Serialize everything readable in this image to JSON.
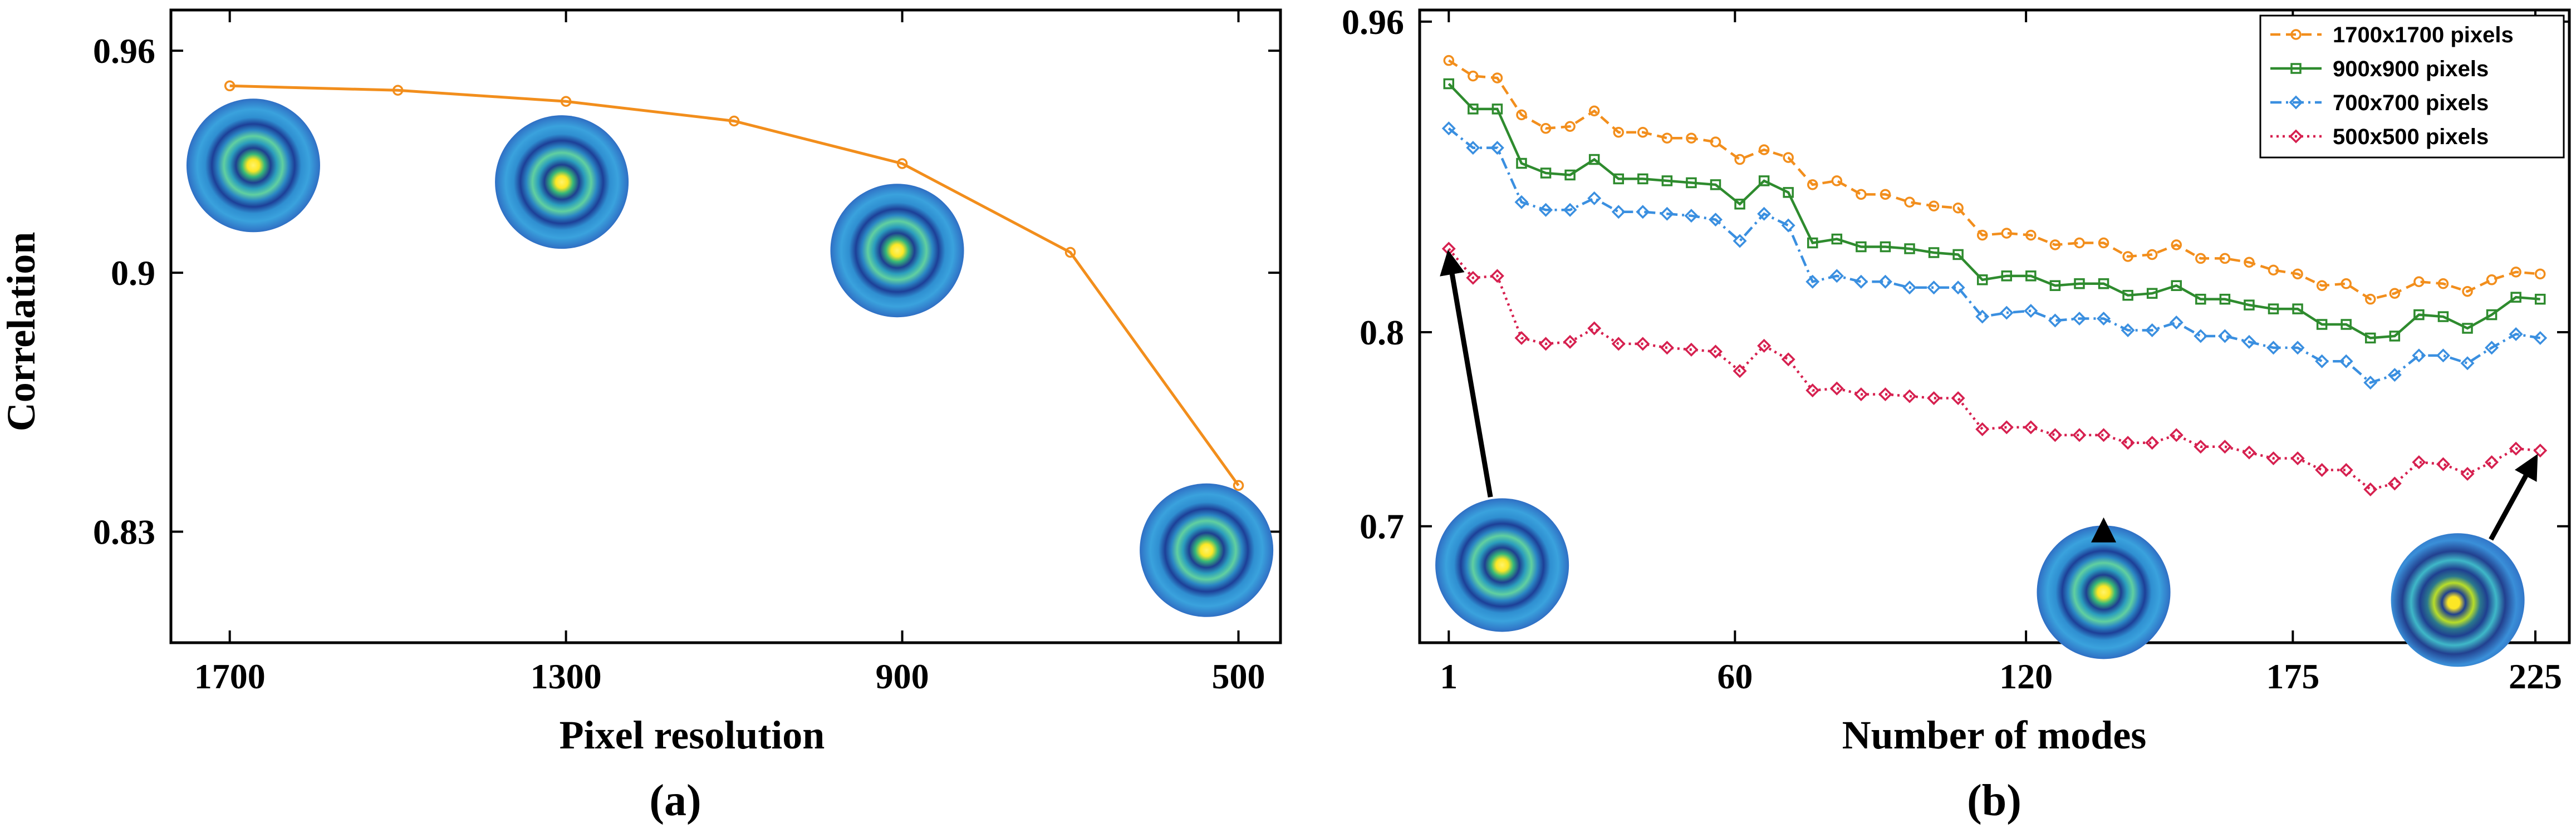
{
  "colors": {
    "orange": "#f28e1c",
    "green": "#2e8b2e",
    "blue": "#3a8fe0",
    "red": "#d6204f",
    "arrow": "#000000"
  },
  "chart_data": [
    {
      "type": "line",
      "panel_label": "(a)",
      "xlabel": "Pixel resolution",
      "ylabel": "Correlation",
      "xticks": [
        "1700",
        "1300",
        "900",
        "500"
      ],
      "yticks": [
        "0.96",
        "0.9",
        "0.83"
      ],
      "x_reversed": true,
      "xlim": [
        1770,
        450
      ],
      "ylim": [
        0.8,
        0.971
      ],
      "grid": false,
      "series": [
        {
          "color": "orange",
          "marker": "circle",
          "x": [
            1700,
            1500,
            1300,
            1100,
            900,
            700,
            500
          ],
          "y": [
            0.9505,
            0.9493,
            0.9463,
            0.941,
            0.9295,
            0.9055,
            0.8425
          ]
        }
      ],
      "insets": [
        {
          "icon": "ring-beam-icon",
          "x": 1672,
          "y": 0.929
        },
        {
          "icon": "ring-beam-icon",
          "x": 1305,
          "y": 0.9245
        },
        {
          "icon": "ring-beam-icon",
          "x": 906,
          "y": 0.906
        },
        {
          "icon": "ring-beam-icon",
          "x": 538,
          "y": 0.825
        }
      ]
    },
    {
      "type": "line",
      "panel_label": "(b)",
      "xlabel": "Number of modes",
      "ylabel": "",
      "xticks": [
        "1",
        "60",
        "120",
        "175",
        "225"
      ],
      "yticks": [
        "0.96",
        "0.8",
        "0.7"
      ],
      "xlim": [
        -5,
        232
      ],
      "ylim": [
        0.64,
        0.966
      ],
      "grid": false,
      "legend": {
        "position": "top-right"
      },
      "x": [
        1,
        6,
        11,
        16,
        21,
        26,
        31,
        36,
        41,
        46,
        51,
        56,
        61,
        66,
        71,
        76,
        81,
        86,
        91,
        96,
        101,
        106,
        111,
        116,
        121,
        126,
        131,
        136,
        141,
        146,
        151,
        156,
        161,
        166,
        171,
        176,
        181,
        186,
        191,
        196,
        201,
        206,
        211,
        216,
        221,
        226
      ],
      "series": [
        {
          "name": "1700x1700 pixels",
          "color": "orange",
          "line": "dashed",
          "marker": "circle",
          "y": [
            0.94,
            0.932,
            0.931,
            0.912,
            0.905,
            0.906,
            0.914,
            0.903,
            0.903,
            0.9,
            0.9,
            0.898,
            0.889,
            0.894,
            0.89,
            0.876,
            0.878,
            0.871,
            0.871,
            0.867,
            0.865,
            0.864,
            0.85,
            0.851,
            0.85,
            0.845,
            0.846,
            0.846,
            0.839,
            0.84,
            0.845,
            0.838,
            0.838,
            0.836,
            0.832,
            0.83,
            0.824,
            0.825,
            0.817,
            0.82,
            0.826,
            0.825,
            0.821,
            0.827,
            0.831,
            0.83
          ]
        },
        {
          "name": "900x900 pixels",
          "color": "green",
          "line": "solid",
          "marker": "square",
          "y": [
            0.928,
            0.915,
            0.915,
            0.887,
            0.882,
            0.881,
            0.889,
            0.879,
            0.879,
            0.878,
            0.877,
            0.876,
            0.866,
            0.878,
            0.872,
            0.846,
            0.848,
            0.844,
            0.844,
            0.843,
            0.841,
            0.84,
            0.827,
            0.829,
            0.829,
            0.824,
            0.825,
            0.825,
            0.819,
            0.82,
            0.824,
            0.817,
            0.817,
            0.814,
            0.812,
            0.812,
            0.804,
            0.804,
            0.797,
            0.798,
            0.809,
            0.808,
            0.802,
            0.809,
            0.818,
            0.817
          ]
        },
        {
          "name": "700x700 pixels",
          "color": "blue",
          "line": "dashdot",
          "marker": "diamond",
          "y": [
            0.905,
            0.895,
            0.895,
            0.867,
            0.863,
            0.863,
            0.869,
            0.862,
            0.862,
            0.861,
            0.86,
            0.858,
            0.847,
            0.861,
            0.855,
            0.826,
            0.829,
            0.826,
            0.826,
            0.823,
            0.823,
            0.823,
            0.808,
            0.81,
            0.811,
            0.806,
            0.807,
            0.807,
            0.801,
            0.801,
            0.805,
            0.798,
            0.798,
            0.795,
            0.792,
            0.792,
            0.785,
            0.785,
            0.774,
            0.778,
            0.788,
            0.788,
            0.784,
            0.792,
            0.799,
            0.797
          ]
        },
        {
          "name": "500x500 pixels",
          "color": "red",
          "line": "dotted",
          "marker": "diamond",
          "y": [
            0.843,
            0.828,
            0.829,
            0.797,
            0.794,
            0.795,
            0.802,
            0.794,
            0.794,
            0.792,
            0.791,
            0.79,
            0.78,
            0.793,
            0.786,
            0.77,
            0.771,
            0.768,
            0.768,
            0.767,
            0.766,
            0.766,
            0.75,
            0.751,
            0.751,
            0.747,
            0.747,
            0.747,
            0.743,
            0.743,
            0.747,
            0.741,
            0.741,
            0.738,
            0.735,
            0.735,
            0.729,
            0.729,
            0.719,
            0.722,
            0.733,
            0.732,
            0.727,
            0.733,
            0.74,
            0.739
          ]
        }
      ],
      "insets": [
        {
          "icon": "ring-beam-icon",
          "x": 12,
          "y": 0.68,
          "arrow_to": {
            "x": 1,
            "y": 0.84
          }
        },
        {
          "icon": "ring-beam-icon",
          "x": 136,
          "y": 0.666,
          "arrow_to": {
            "x": 136,
            "y": 0.702
          }
        },
        {
          "icon": "distorted-ring-beam-icon",
          "x": 209,
          "y": 0.662,
          "arrow_to": {
            "x": 225,
            "y": 0.735
          }
        }
      ]
    }
  ]
}
